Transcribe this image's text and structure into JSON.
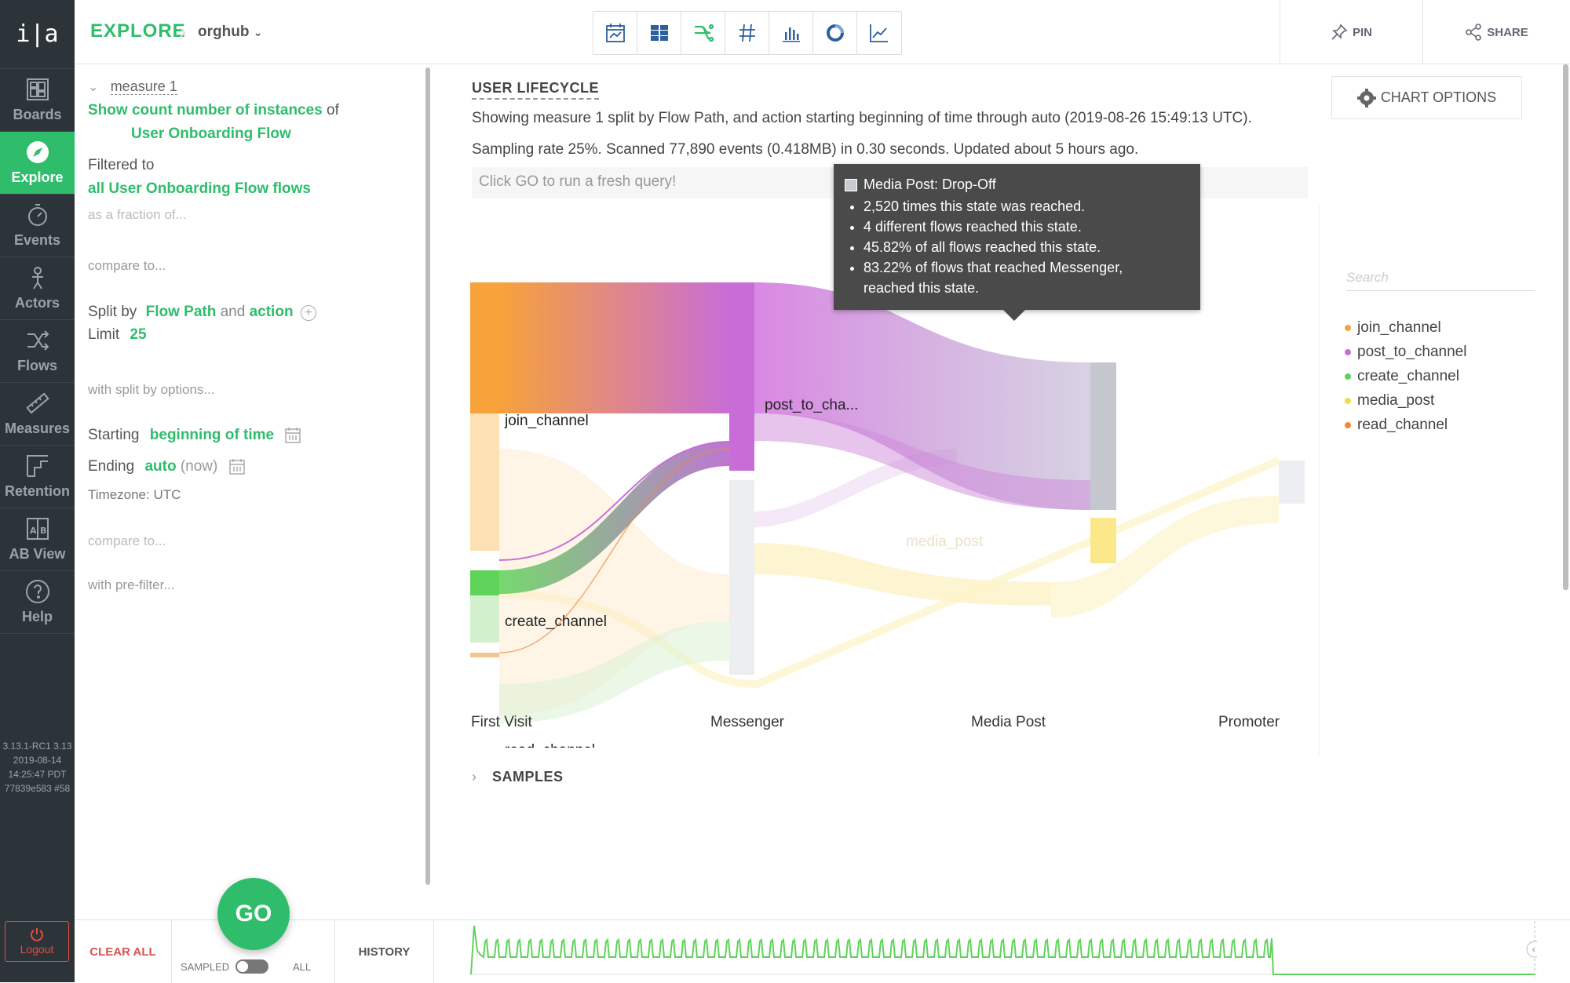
{
  "nav": {
    "logo": "i|a",
    "items": [
      {
        "label": "Boards",
        "icon": "boards-icon"
      },
      {
        "label": "Explore",
        "icon": "compass-icon"
      },
      {
        "label": "Events",
        "icon": "stopwatch-icon"
      },
      {
        "label": "Actors",
        "icon": "actor-icon"
      },
      {
        "label": "Flows",
        "icon": "flows-icon"
      },
      {
        "label": "Measures",
        "icon": "ruler-icon"
      },
      {
        "label": "Retention",
        "icon": "retention-icon"
      },
      {
        "label": "AB View",
        "icon": "ab-icon"
      },
      {
        "label": "Help",
        "icon": "help-icon"
      }
    ],
    "version_lines": [
      "3.13.1-RC1 3.13",
      "2019-08-14",
      "14:25:47 PDT",
      "77839e583 #58"
    ],
    "logout": "Logout"
  },
  "topbar": {
    "explore": "EXPLORE",
    "org": "orghub",
    "pin": "PIN",
    "share": "SHARE",
    "viz_icons": [
      "calendar-icon",
      "table-icon",
      "flow-icon",
      "hash-icon",
      "bar-chart-icon",
      "donut-icon",
      "line-chart-icon"
    ]
  },
  "query": {
    "measure_label": "measure 1",
    "show_prefix": "Show",
    "show_metric": "count number of instances",
    "show_of": "of",
    "flow_name": "User Onboarding Flow",
    "filtered_to": "Filtered to",
    "filtered_value": "all User Onboarding Flow flows",
    "fraction": "as a fraction of...",
    "compare": "compare to...",
    "split_by": "Split by",
    "split_a": "Flow Path",
    "split_and": "and",
    "split_b": "action",
    "limit_label": "Limit",
    "limit_value": "25",
    "split_options": "with split by options...",
    "starting_label": "Starting",
    "starting_value": "beginning of time",
    "ending_label": "Ending",
    "ending_value": "auto",
    "ending_now": "(now)",
    "timezone": "Timezone: UTC",
    "compare2": "compare to...",
    "prefilter": "with pre-filter..."
  },
  "bottom": {
    "clear_all": "CLEAR ALL",
    "go": "GO",
    "sampled": "SAMPLED",
    "all": "ALL",
    "history": "HISTORY"
  },
  "main": {
    "chart_title": "USER LIFECYCLE",
    "description": "Showing measure 1 split by Flow Path, and action starting beginning of time through auto (2019-08-26 15:49:13 UTC).",
    "sampling": "Sampling rate 25%. Scanned 77,890 events (0.418MB) in 0.30 seconds. Updated about 5 hours ago.",
    "go_note": "Click GO to run a fresh query!",
    "chart_options": "CHART OPTIONS",
    "samples": "SAMPLES",
    "search_placeholder": "Search"
  },
  "chart_data": {
    "type": "sankey",
    "stages": [
      "First Visit",
      "Messenger",
      "Media Post",
      "Promoter"
    ],
    "node_labels": [
      "join_channel",
      "post_to_cha...",
      "create_channel",
      "media_post",
      "read_channel"
    ],
    "legend": [
      {
        "label": "join_channel",
        "color": "#f7a23a"
      },
      {
        "label": "post_to_channel",
        "color": "#c86dd7"
      },
      {
        "label": "create_channel",
        "color": "#5fd35a"
      },
      {
        "label": "media_post",
        "color": "#f5dc49"
      },
      {
        "label": "read_channel",
        "color": "#f08a3a"
      }
    ]
  },
  "tooltip": {
    "title": "Media Post: Drop-Off",
    "lines": [
      "2,520 times this state was reached.",
      "4 different flows reached this state.",
      "45.82% of all flows reached this state.",
      "83.22% of flows that reached Messenger,",
      "reached this state."
    ]
  }
}
